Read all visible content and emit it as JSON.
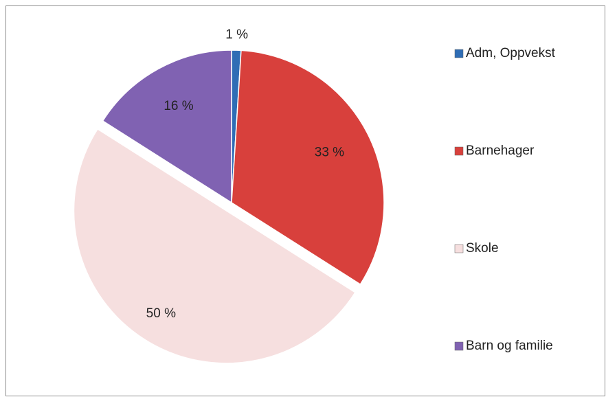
{
  "chart_data": {
    "type": "pie",
    "categories": [
      "Adm, Oppvekst",
      "Barnehager",
      "Skole",
      "Barn og familie"
    ],
    "values": [
      1,
      33,
      50,
      16
    ],
    "value_labels": [
      "1 %",
      "33 %",
      "50 %",
      "16 %"
    ],
    "colors": [
      "#2f6db5",
      "#d8403c",
      "#f6dfdf",
      "#8062b2"
    ],
    "exploded": [
      false,
      false,
      true,
      false
    ],
    "legend": "right"
  }
}
